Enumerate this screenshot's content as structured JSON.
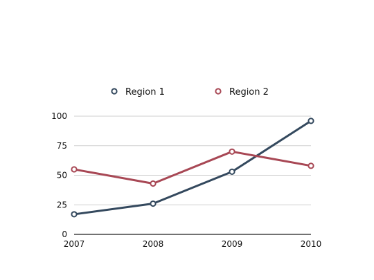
{
  "chart_data": {
    "type": "line",
    "categories": [
      "2007",
      "2008",
      "2009",
      "2010"
    ],
    "series": [
      {
        "name": "Region 1",
        "values": [
          17,
          26,
          53,
          96
        ],
        "color": "#34495e"
      },
      {
        "name": "Region 2",
        "values": [
          55,
          43,
          70,
          58
        ],
        "color": "#a84855"
      }
    ],
    "ylim": [
      0,
      100
    ],
    "yticks": [
      0,
      25,
      50,
      75,
      100
    ],
    "grid": true,
    "legend_position": "top"
  }
}
